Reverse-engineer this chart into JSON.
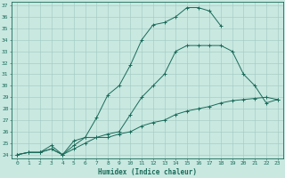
{
  "xlabel": "Humidex (Indice chaleur)",
  "ylabel": "",
  "bg_color": "#c8e8e0",
  "grid_color": "#a0c8c0",
  "line_color": "#1a6b5a",
  "xlim": [
    -0.5,
    23.5
  ],
  "ylim": [
    23.7,
    37.3
  ],
  "xticks": [
    0,
    1,
    2,
    3,
    4,
    5,
    6,
    7,
    8,
    9,
    10,
    11,
    12,
    13,
    14,
    15,
    16,
    17,
    18,
    19,
    20,
    21,
    22,
    23
  ],
  "yticks": [
    24,
    25,
    26,
    27,
    28,
    29,
    30,
    31,
    32,
    33,
    34,
    35,
    36,
    37
  ],
  "line1_x": [
    0,
    1,
    2,
    3,
    4,
    5,
    6,
    7,
    8,
    9,
    10,
    11,
    12,
    13,
    14,
    15,
    16,
    17,
    18
  ],
  "line1_y": [
    24,
    24.2,
    24.2,
    24.5,
    24.0,
    25.2,
    25.5,
    27.2,
    29.2,
    30.0,
    31.8,
    34.0,
    35.3,
    35.5,
    36.0,
    36.8,
    36.8,
    36.5,
    35.2
  ],
  "line2_x": [
    0,
    1,
    2,
    3,
    4,
    5,
    6,
    7,
    8,
    9,
    10,
    11,
    12,
    13,
    14,
    15,
    16,
    17,
    18,
    19,
    20,
    21,
    22,
    23
  ],
  "line2_y": [
    24,
    24.2,
    24.2,
    24.8,
    24.0,
    24.8,
    25.5,
    25.5,
    25.8,
    26.0,
    27.5,
    29.0,
    30.0,
    31.0,
    33.0,
    33.5,
    33.5,
    33.5,
    33.5,
    33.0,
    31.0,
    30.0,
    28.5,
    28.8
  ],
  "line3_x": [
    0,
    1,
    2,
    3,
    4,
    5,
    6,
    7,
    8,
    9,
    10,
    11,
    12,
    13,
    14,
    15,
    16,
    17,
    18,
    19,
    20,
    21,
    22,
    23
  ],
  "line3_y": [
    24,
    24.2,
    24.2,
    24.5,
    24.0,
    24.5,
    25.0,
    25.5,
    25.5,
    25.8,
    26.0,
    26.5,
    26.8,
    27.0,
    27.5,
    27.8,
    28.0,
    28.2,
    28.5,
    28.7,
    28.8,
    28.9,
    29.0,
    28.8
  ],
  "tick_fontsize": 4.5,
  "xlabel_fontsize": 5.5
}
